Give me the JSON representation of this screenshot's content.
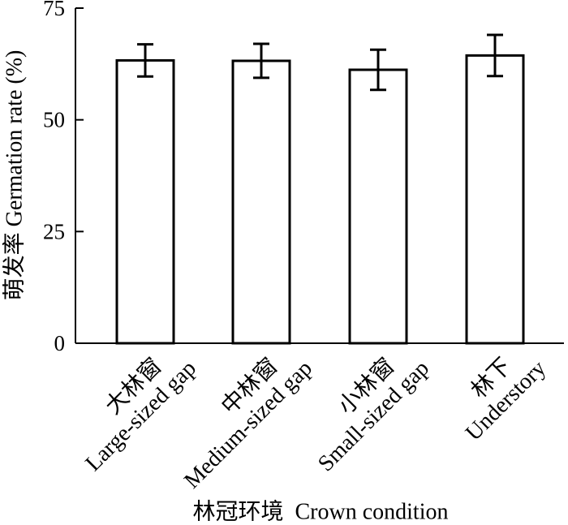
{
  "chart_data": {
    "type": "bar",
    "categories": [
      {
        "zh": "大林窗",
        "en": "Large-sized gap"
      },
      {
        "zh": "中林窗",
        "en": "Medium-sized gap"
      },
      {
        "zh": "小林窗",
        "en": "Small-sized gap"
      },
      {
        "zh": "林下",
        "en": "Understory"
      }
    ],
    "values": [
      63.3,
      63.2,
      61.2,
      64.4
    ],
    "errors": [
      3.6,
      3.8,
      4.5,
      4.6
    ],
    "ylabel": "萌发率 Germation rate (%)",
    "xlabel": "林冠环境  Crown condition",
    "ylim": [
      0,
      75
    ],
    "yticks": [
      0,
      25,
      50,
      75
    ],
    "grid": false,
    "legend": "none",
    "bar_fill": "#ffffff",
    "stroke_color": "#000000"
  }
}
